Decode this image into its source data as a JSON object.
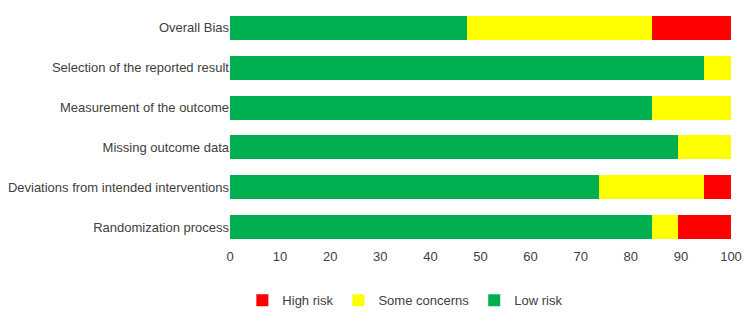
{
  "chart_data": {
    "type": "bar",
    "orientation": "horizontal",
    "stacked": true,
    "grid": false,
    "legend": "bottom",
    "categories": [
      "Overall Bias",
      "Selection of the reported result",
      "Measurement of the outcome",
      "Missing outcome data",
      "Deviations from intended interventions",
      "Randomization process"
    ],
    "series": [
      {
        "name": "Low risk",
        "color": "#00b050",
        "values": [
          47.4,
          94.7,
          84.2,
          89.5,
          73.7,
          84.2
        ]
      },
      {
        "name": "Some concerns",
        "color": "#ffff00",
        "values": [
          36.8,
          5.3,
          15.8,
          10.5,
          21.0,
          5.3
        ]
      },
      {
        "name": "High risk",
        "color": "#ff0000",
        "values": [
          15.8,
          0,
          0,
          0,
          5.3,
          10.5
        ]
      }
    ],
    "xlim": [
      0,
      100
    ],
    "xticks": [
      0,
      10,
      20,
      30,
      40,
      50,
      60,
      70,
      80,
      90,
      100
    ]
  }
}
